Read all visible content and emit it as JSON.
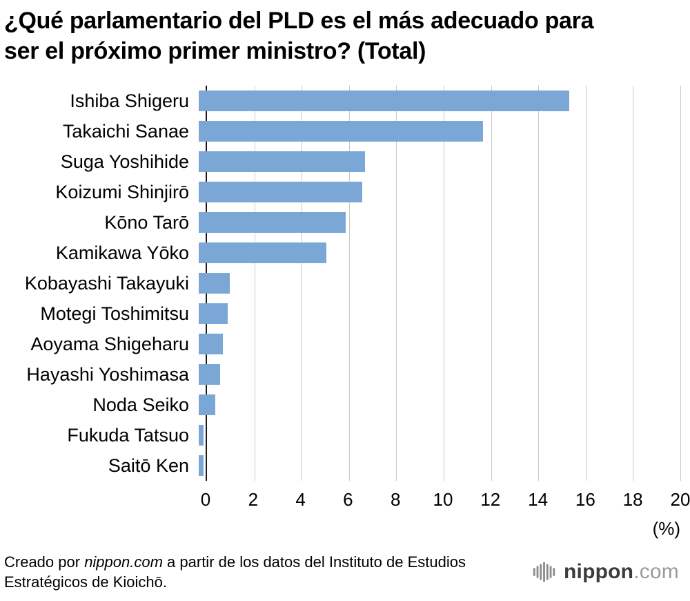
{
  "title": "¿Qué parlamentario del PLD es el más adecuado para ser el próximo primer ministro? (Total)",
  "chart_data": {
    "type": "bar",
    "orientation": "horizontal",
    "categories": [
      "Ishiba Shigeru",
      "Takaichi Sanae",
      "Suga Yoshihide",
      "Koizumi Shinjirō",
      "Kōno Tarō",
      "Kamikawa Yōko",
      "Kobayashi Takayuki",
      "Motegi Toshimitsu",
      "Aoyama Shigeharu",
      "Hayashi Yoshimasa",
      "Noda Seiko",
      "Fukuda Tatsuo",
      "Saitō Ken"
    ],
    "values": [
      15.4,
      11.8,
      6.9,
      6.8,
      6.1,
      5.3,
      1.3,
      1.2,
      1.0,
      0.9,
      0.7,
      0.2,
      0.2
    ],
    "xlim": [
      0,
      20
    ],
    "xticks": [
      0,
      2,
      4,
      6,
      8,
      10,
      12,
      14,
      16,
      18,
      20
    ],
    "xlabel": "(%)",
    "bar_color": "#7aa7d6",
    "gridline_color": "#c9c9c9",
    "grid": true,
    "legend": false
  },
  "footer": {
    "prefix": "Creado por ",
    "brand": "nippon.com",
    "suffix": " a partir de los datos del Instituto de Estudios Estratégicos de Kioichō."
  },
  "logo": {
    "name": "nippon",
    "tld": ".com",
    "icon": "nippon-logo-bars-icon"
  }
}
